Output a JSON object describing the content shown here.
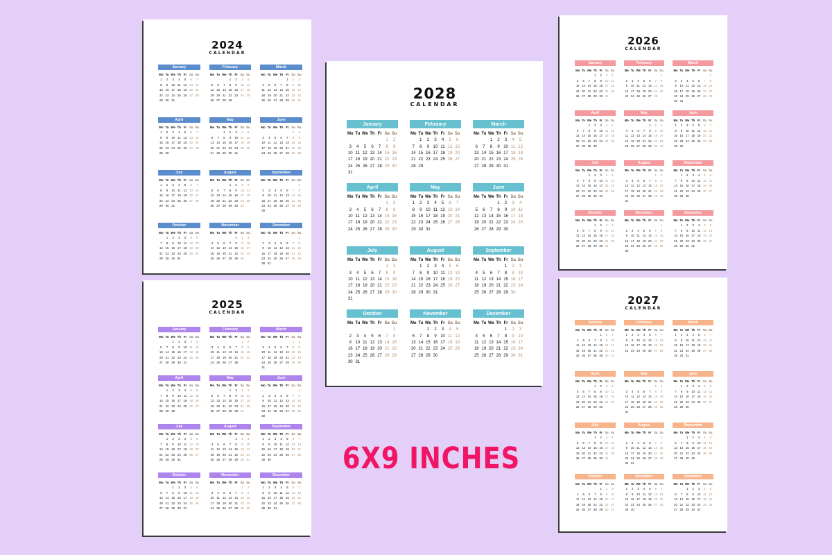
{
  "weekday_labels": [
    "Mo",
    "Tu",
    "We",
    "Th",
    "Fr",
    "Sa",
    "Su"
  ],
  "month_names": [
    "January",
    "February",
    "March",
    "April",
    "May",
    "June",
    "July",
    "August",
    "September",
    "October",
    "November",
    "December"
  ],
  "sheets": [
    {
      "year": "2024",
      "subtitle": "CALENDAR",
      "accent": "#5b8ccc"
    },
    {
      "year": "2025",
      "subtitle": "CALENDAR",
      "accent": "#ad85ec"
    },
    {
      "year": "2028",
      "subtitle": "CALENDAR",
      "accent": "#66c0cf"
    },
    {
      "year": "2026",
      "subtitle": "CALENDAR",
      "accent": "#f49a9f"
    },
    {
      "year": "2027",
      "subtitle": "CALENDAR",
      "accent": "#f7b48b"
    }
  ],
  "caption": "6X9 INCHES"
}
